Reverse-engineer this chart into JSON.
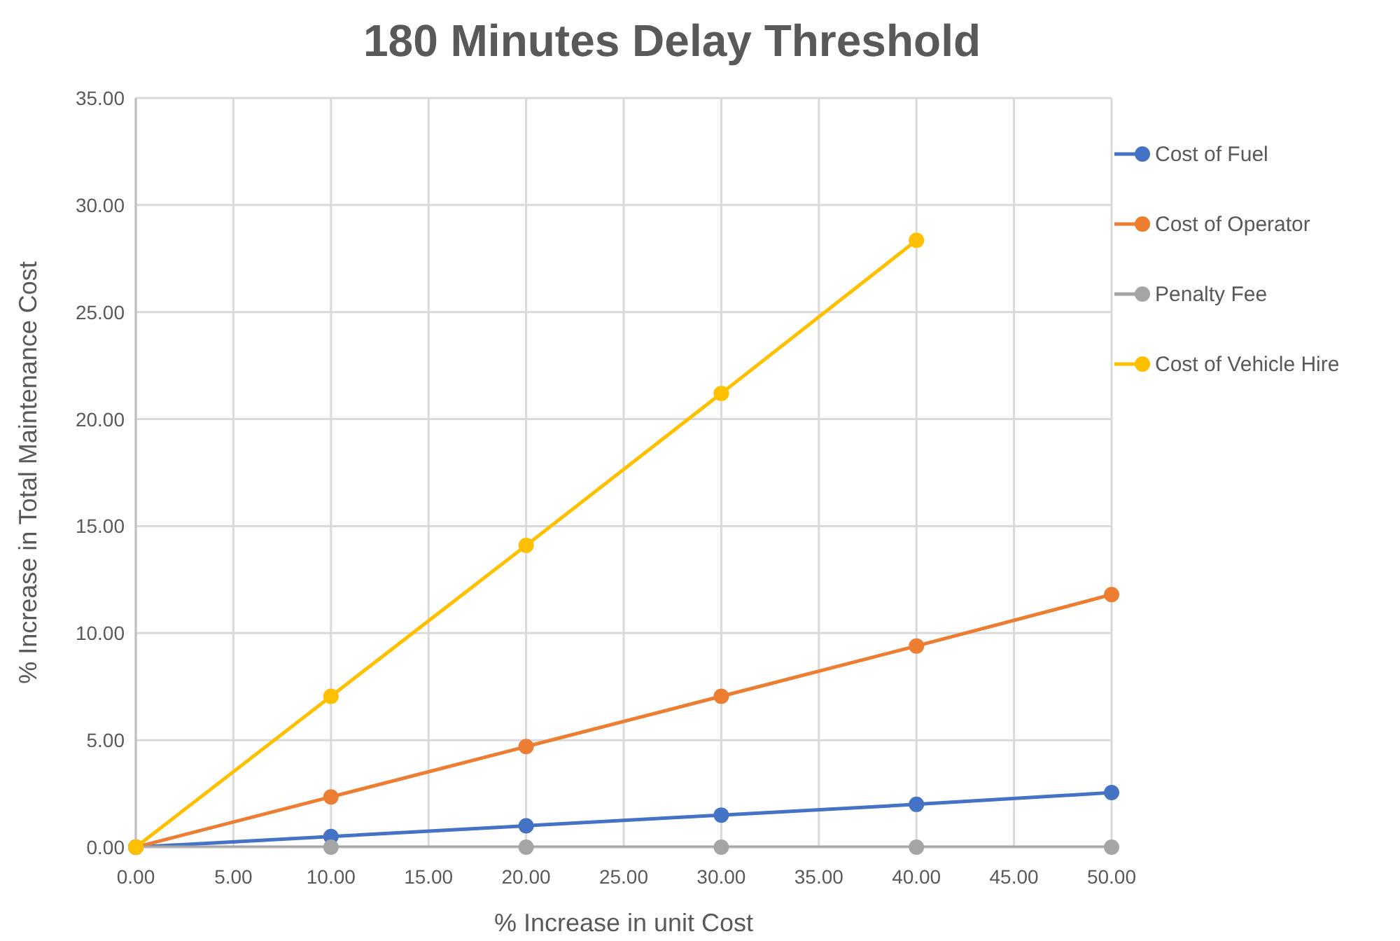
{
  "chart_data": {
    "type": "line",
    "title": "180 Minutes Delay Threshold",
    "xlabel": "% Increase in unit Cost",
    "ylabel": "% Increase in Total Maintenance Cost",
    "x": [
      0,
      10,
      20,
      30,
      40,
      50
    ],
    "series": [
      {
        "name": "Cost of Fuel",
        "color": "#4472c4",
        "values": [
          0,
          0.5,
          1.0,
          1.5,
          2.0,
          2.55
        ]
      },
      {
        "name": "Cost of Operator",
        "color": "#ed7d31",
        "values": [
          0,
          2.35,
          4.7,
          7.05,
          9.4,
          11.8
        ]
      },
      {
        "name": "Penalty Fee",
        "color": "#a5a5a5",
        "values": [
          0,
          0,
          0,
          0,
          0,
          0
        ]
      },
      {
        "name": "Cost of Vehicle Hire",
        "color": "#ffc000",
        "values": [
          0,
          7.05,
          14.1,
          21.2,
          28.35,
          null
        ]
      }
    ],
    "xlim": [
      0,
      50
    ],
    "ylim": [
      0,
      35
    ],
    "xticks": [
      {
        "value": 0,
        "label": "0.00"
      },
      {
        "value": 5,
        "label": "5.00"
      },
      {
        "value": 10,
        "label": "10.00"
      },
      {
        "value": 15,
        "label": "15.00"
      },
      {
        "value": 20,
        "label": "20.00"
      },
      {
        "value": 25,
        "label": "25.00"
      },
      {
        "value": 30,
        "label": "30.00"
      },
      {
        "value": 35,
        "label": "35.00"
      },
      {
        "value": 40,
        "label": "40.00"
      },
      {
        "value": 45,
        "label": "45.00"
      },
      {
        "value": 50,
        "label": "50.00"
      }
    ],
    "yticks": [
      {
        "value": 0,
        "label": "0.00"
      },
      {
        "value": 5,
        "label": "5.00"
      },
      {
        "value": 10,
        "label": "10.00"
      },
      {
        "value": 15,
        "label": "15.00"
      },
      {
        "value": 20,
        "label": "20.00"
      },
      {
        "value": 25,
        "label": "25.00"
      },
      {
        "value": 30,
        "label": "30.00"
      },
      {
        "value": 35,
        "label": "35.00"
      }
    ],
    "grid": true,
    "legend": "right",
    "marker": "circle",
    "line_style": "solid"
  }
}
